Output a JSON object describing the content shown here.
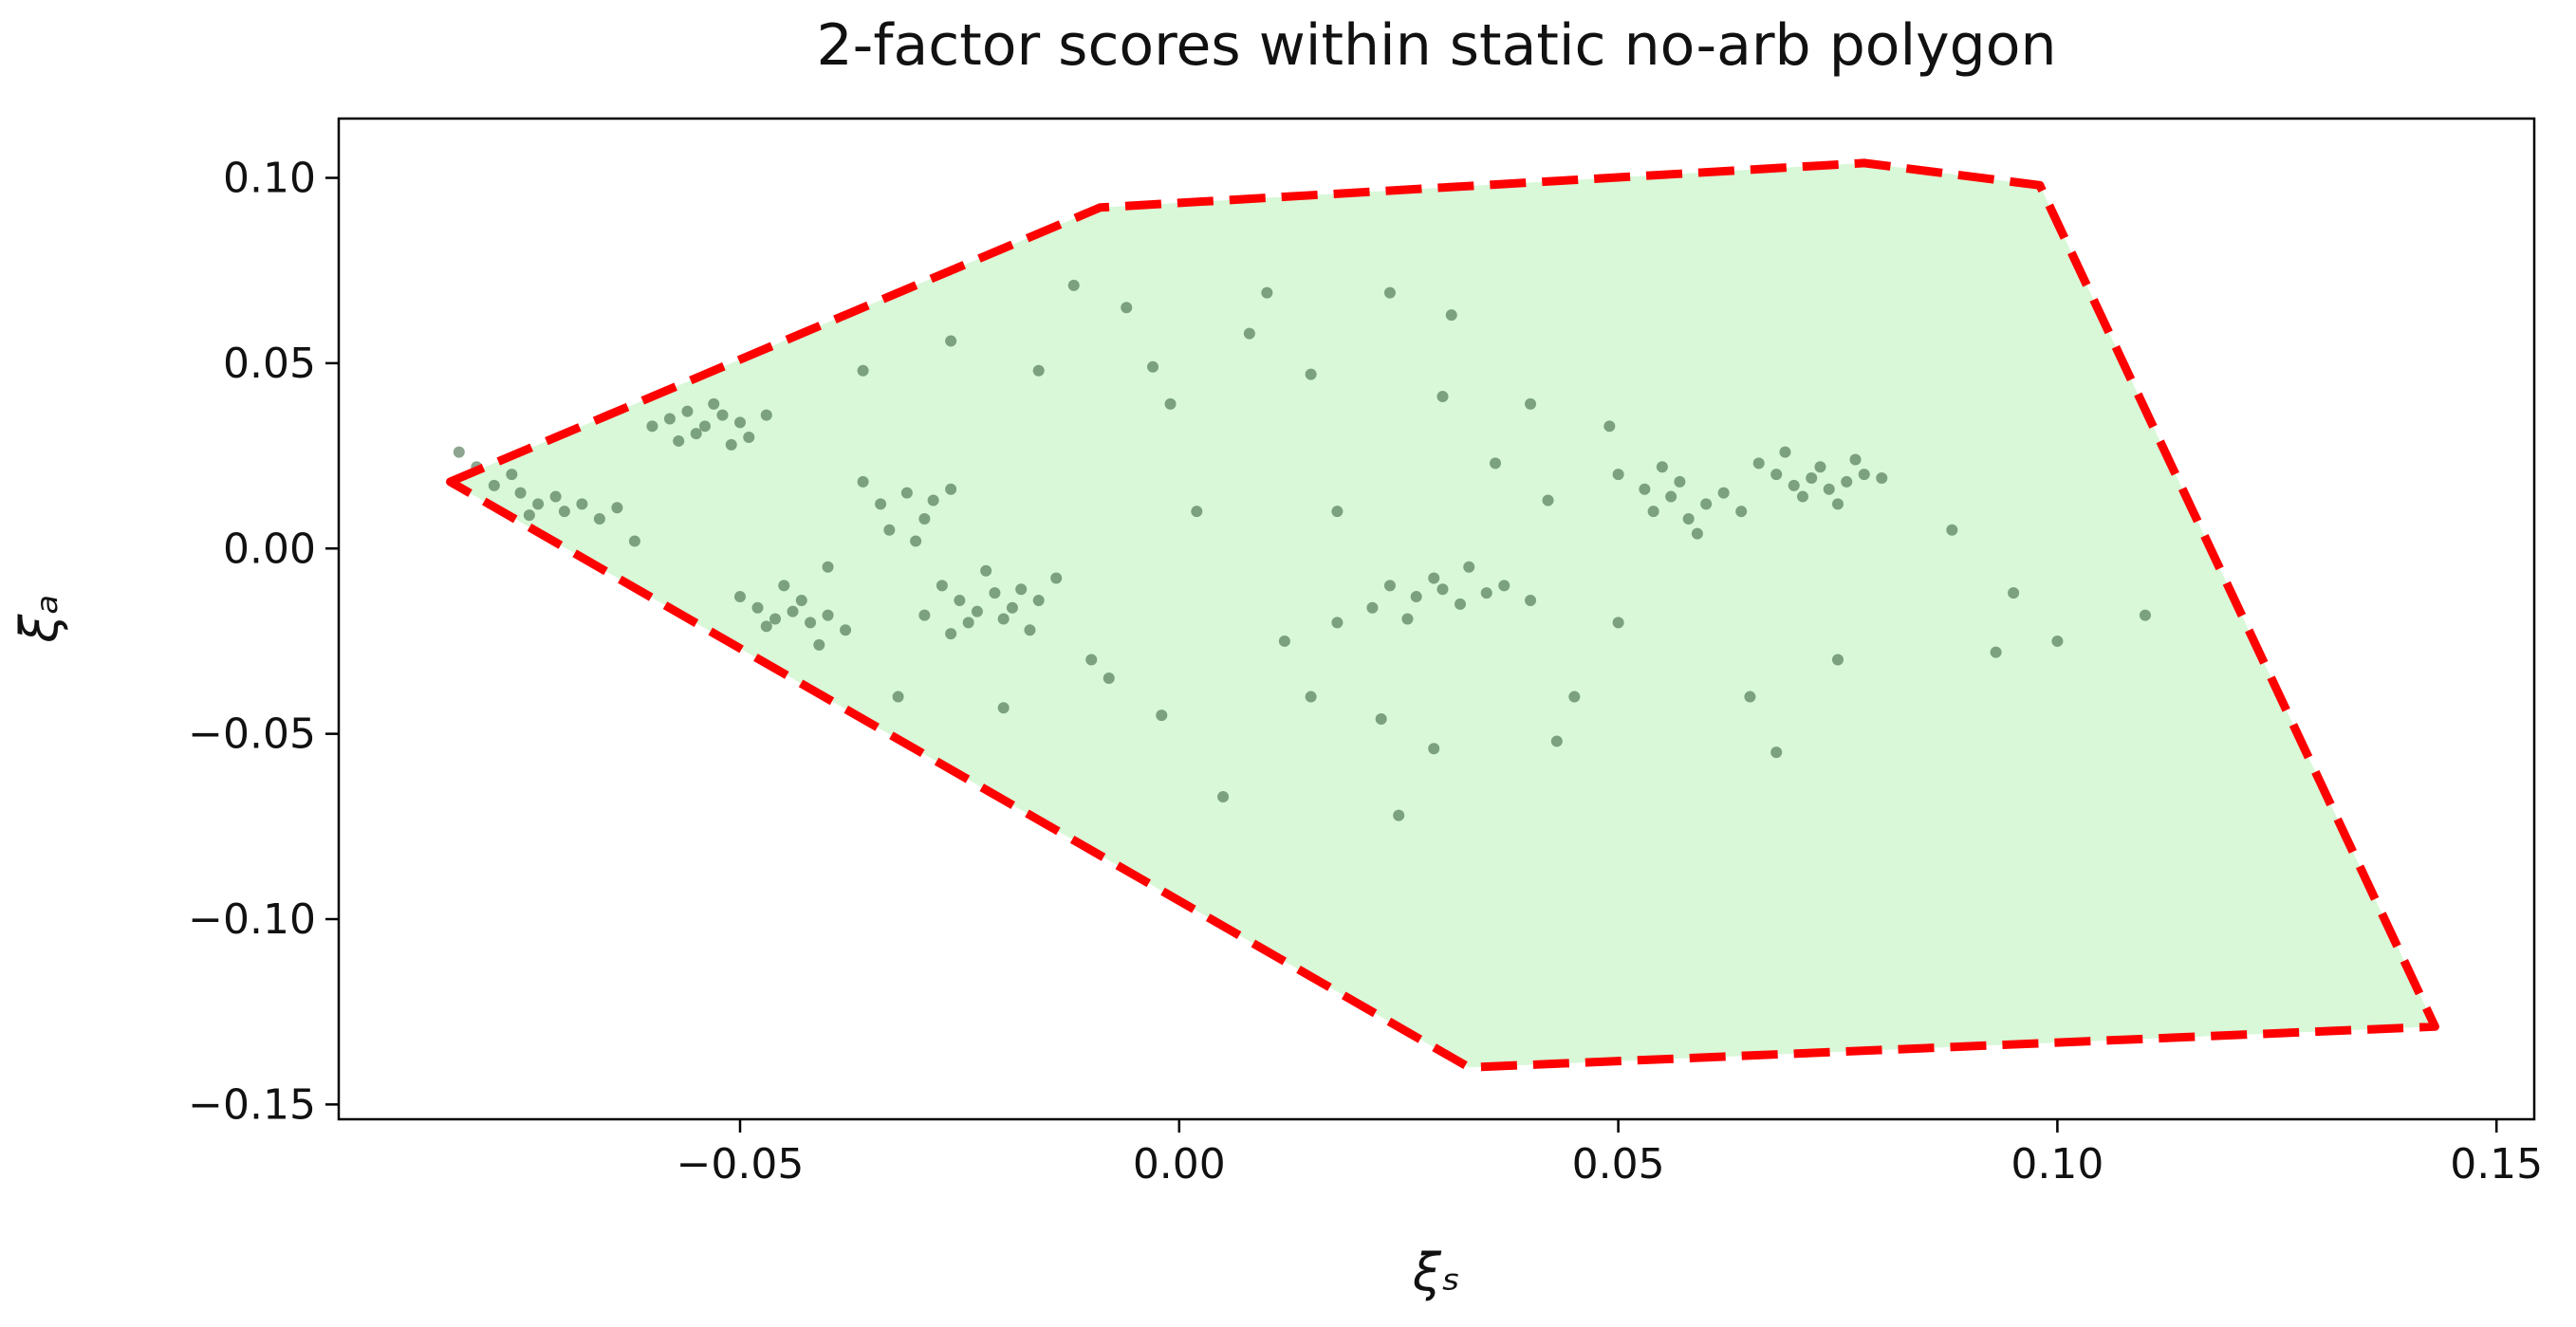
{
  "chart_data": {
    "type": "scatter",
    "title": "2-factor scores within static no-arb polygon",
    "xlabel": "ξₛ",
    "ylabel": "ξₐ",
    "color": "#2f5a36",
    "x": [
      -0.058,
      -0.056,
      -0.054,
      -0.052,
      -0.05,
      -0.055,
      -0.053,
      -0.049,
      -0.06,
      -0.051,
      -0.047,
      -0.057,
      -0.078,
      -0.075,
      -0.073,
      -0.071,
      -0.07,
      -0.074,
      -0.068,
      -0.066,
      -0.076,
      -0.08,
      -0.082,
      -0.064,
      -0.048,
      -0.046,
      -0.044,
      -0.042,
      -0.047,
      -0.043,
      -0.04,
      -0.05,
      -0.038,
      -0.045,
      -0.041,
      -0.025,
      -0.023,
      -0.021,
      -0.019,
      -0.024,
      -0.02,
      -0.018,
      -0.027,
      -0.016,
      -0.026,
      -0.022,
      -0.017,
      -0.029,
      -0.014,
      -0.034,
      -0.031,
      -0.029,
      -0.033,
      -0.028,
      -0.036,
      -0.03,
      -0.026,
      0.024,
      0.027,
      0.03,
      0.032,
      0.029,
      0.035,
      0.022,
      0.033,
      0.026,
      0.037,
      0.04,
      0.054,
      0.056,
      0.058,
      0.06,
      0.057,
      0.062,
      0.053,
      0.059,
      0.055,
      0.05,
      0.068,
      0.07,
      0.072,
      0.074,
      0.076,
      0.073,
      0.071,
      0.075,
      0.078,
      0.066,
      0.069,
      0.08,
      0.064,
      0.077,
      -0.012,
      -0.006,
      0.01,
      0.024,
      0.031,
      0.008,
      0.015,
      -0.026,
      -0.036,
      -0.016,
      -0.003,
      -0.001,
      0.03,
      0.04,
      0.049,
      0.036,
      0.042,
      0.002,
      0.012,
      -0.008,
      0.015,
      -0.002,
      0.023,
      0.029,
      0.025,
      0.005,
      0.045,
      0.043,
      0.05,
      0.068,
      0.065,
      0.075,
      0.088,
      0.093,
      0.1,
      0.11,
      0.095,
      -0.01,
      -0.032,
      -0.02,
      -0.04,
      0.018,
      -0.062,
      0.018
    ],
    "values": [
      0.035,
      0.037,
      0.033,
      0.036,
      0.034,
      0.031,
      0.039,
      0.03,
      0.033,
      0.028,
      0.036,
      0.029,
      0.017,
      0.015,
      0.012,
      0.014,
      0.01,
      0.009,
      0.012,
      0.008,
      0.02,
      0.022,
      0.026,
      0.011,
      -0.016,
      -0.019,
      -0.017,
      -0.02,
      -0.021,
      -0.014,
      -0.018,
      -0.013,
      -0.022,
      -0.01,
      -0.026,
      -0.014,
      -0.017,
      -0.012,
      -0.016,
      -0.02,
      -0.019,
      -0.011,
      -0.01,
      -0.014,
      -0.023,
      -0.006,
      -0.022,
      -0.018,
      -0.008,
      0.012,
      0.015,
      0.008,
      0.005,
      0.013,
      0.018,
      0.002,
      0.016,
      -0.01,
      -0.013,
      -0.011,
      -0.015,
      -0.008,
      -0.012,
      -0.016,
      -0.005,
      -0.019,
      -0.01,
      -0.014,
      0.01,
      0.014,
      0.008,
      0.012,
      0.018,
      0.015,
      0.016,
      0.004,
      0.022,
      0.02,
      0.02,
      0.017,
      0.019,
      0.016,
      0.018,
      0.022,
      0.014,
      0.012,
      0.02,
      0.023,
      0.026,
      0.019,
      0.01,
      0.024,
      0.071,
      0.065,
      0.069,
      0.069,
      0.063,
      0.058,
      0.047,
      0.056,
      0.048,
      0.048,
      0.049,
      0.039,
      0.041,
      0.039,
      0.033,
      0.023,
      0.013,
      0.01,
      -0.025,
      -0.035,
      -0.04,
      -0.045,
      -0.046,
      -0.054,
      -0.072,
      -0.067,
      -0.04,
      -0.052,
      -0.02,
      -0.055,
      -0.04,
      -0.03,
      0.005,
      -0.028,
      -0.025,
      -0.018,
      -0.012,
      -0.03,
      -0.04,
      -0.043,
      -0.005,
      -0.02,
      0.002,
      0.01
    ],
    "polygon": {
      "x": [
        -0.083,
        -0.009,
        0.078,
        0.098,
        0.143,
        0.033
      ],
      "y": [
        0.018,
        0.092,
        0.104,
        0.098,
        -0.129,
        -0.14
      ],
      "fill": "#d8f8d8",
      "edgecolor": "#ff0000"
    },
    "xlim": [
      -0.0957,
      0.1543
    ],
    "ylim": [
      -0.154,
      0.116
    ],
    "xticks": [
      {
        "value": -0.05,
        "label": "−0.05"
      },
      {
        "value": 0,
        "label": "0.00"
      },
      {
        "value": 0.05,
        "label": "0.05"
      },
      {
        "value": 0.1,
        "label": "0.10"
      },
      {
        "value": 0.15,
        "label": "0.15"
      }
    ],
    "yticks": [
      {
        "value": -0.15,
        "label": "−0.15"
      },
      {
        "value": -0.1,
        "label": "−0.10"
      },
      {
        "value": -0.05,
        "label": "−0.05"
      },
      {
        "value": 0,
        "label": "0.00"
      },
      {
        "value": 0.05,
        "label": "0.05"
      },
      {
        "value": 0.1,
        "label": "0.10"
      }
    ],
    "grid": false
  }
}
